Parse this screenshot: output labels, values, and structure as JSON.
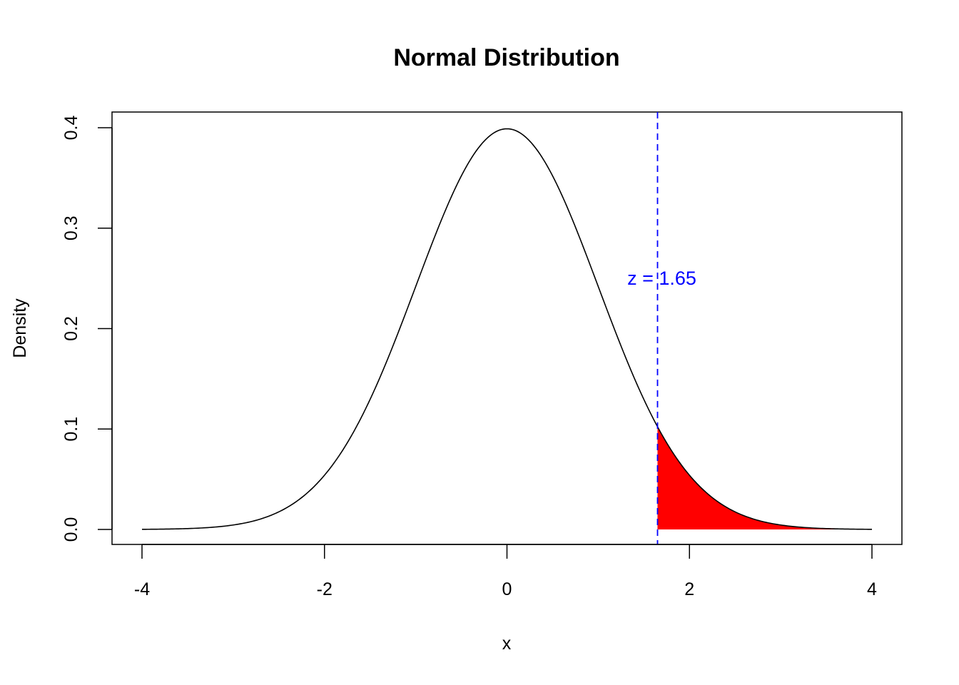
{
  "chart_data": {
    "type": "area",
    "title": "Normal Distribution",
    "xlabel": "x",
    "ylabel": "Density",
    "xlim": [
      -4,
      4
    ],
    "ylim": [
      0,
      0.4
    ],
    "x_ticks": [
      -4,
      -2,
      0,
      2,
      4
    ],
    "x_tick_labels": [
      "-4",
      "-2",
      "0",
      "2",
      "4"
    ],
    "y_ticks": [
      0.0,
      0.1,
      0.2,
      0.3,
      0.4
    ],
    "y_tick_labels": [
      "0.0",
      "0.1",
      "0.2",
      "0.3",
      "0.4"
    ],
    "grid": false,
    "curve": {
      "distribution": "standard normal",
      "mean": 0,
      "sd": 1,
      "x": [
        -4,
        -3.5,
        -3,
        -2.5,
        -2,
        -1.5,
        -1,
        -0.5,
        0,
        0.5,
        1,
        1.5,
        1.65,
        2,
        2.5,
        3,
        3.5,
        4
      ],
      "y": [
        0.0001,
        0.0009,
        0.0044,
        0.0175,
        0.054,
        0.1295,
        0.242,
        0.3521,
        0.3989,
        0.3521,
        0.242,
        0.1295,
        0.1023,
        0.054,
        0.0175,
        0.0044,
        0.0009,
        0.0001
      ],
      "color": "#000000"
    },
    "shaded_region": {
      "from": 1.65,
      "to": 4,
      "color": "#ff0000"
    },
    "reference_line": {
      "x": 1.65,
      "style": "dashed",
      "color": "#0000ff"
    },
    "annotation": {
      "text": "z = 1.65",
      "x": 1.65,
      "y": 0.25,
      "color": "#0000ff"
    }
  }
}
